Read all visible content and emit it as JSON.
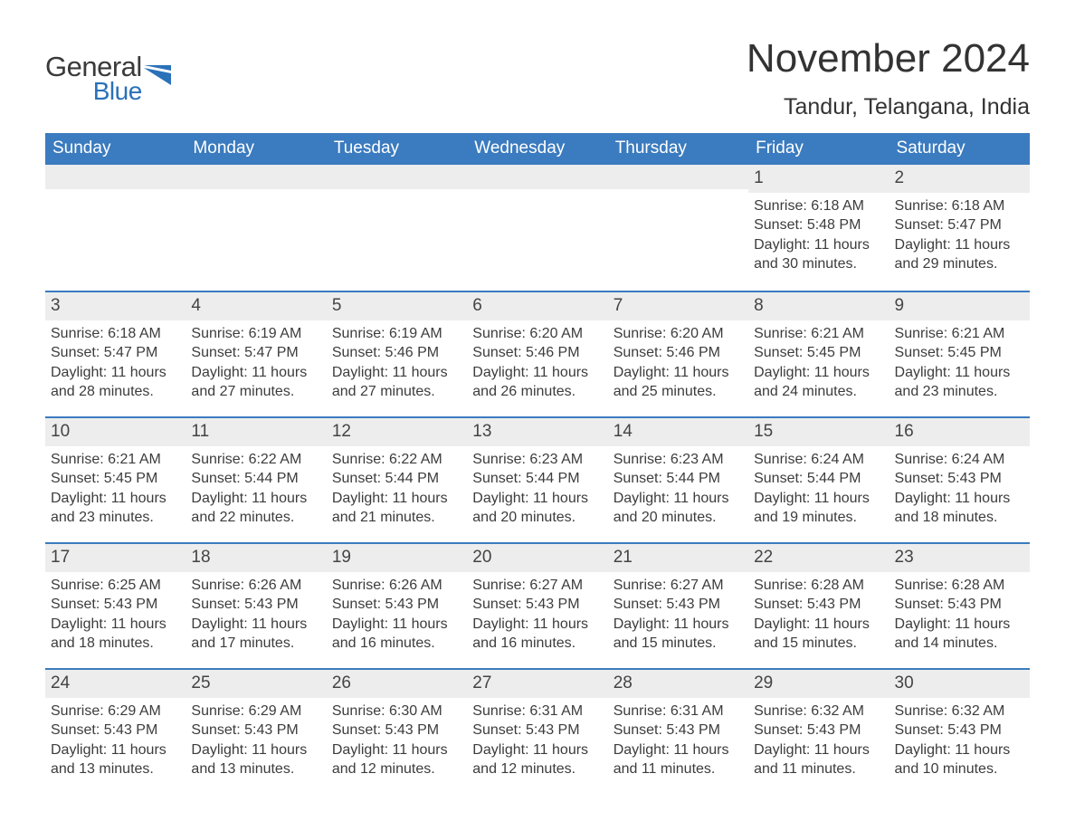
{
  "logo": {
    "general": "General",
    "blue": "Blue"
  },
  "title": "November 2024",
  "location": "Tandur, Telangana, India",
  "colors": {
    "header_bg": "#3b7bbf",
    "header_text": "#ffffff",
    "daybar_bg": "#ededed",
    "row_border": "#3b7bbf",
    "text": "#3c3c3c",
    "logo_blue": "#2a71b8"
  },
  "font": {
    "family": "Arial",
    "body_size_pt": 12,
    "title_size_pt": 33
  },
  "layout": {
    "columns": 7,
    "rows": 5,
    "first_day_column_index": 5
  },
  "weekdays": [
    "Sunday",
    "Monday",
    "Tuesday",
    "Wednesday",
    "Thursday",
    "Friday",
    "Saturday"
  ],
  "days": [
    {
      "n": 1,
      "sunrise": "6:18 AM",
      "sunset": "5:48 PM",
      "daylight": "11 hours and 30 minutes."
    },
    {
      "n": 2,
      "sunrise": "6:18 AM",
      "sunset": "5:47 PM",
      "daylight": "11 hours and 29 minutes."
    },
    {
      "n": 3,
      "sunrise": "6:18 AM",
      "sunset": "5:47 PM",
      "daylight": "11 hours and 28 minutes."
    },
    {
      "n": 4,
      "sunrise": "6:19 AM",
      "sunset": "5:47 PM",
      "daylight": "11 hours and 27 minutes."
    },
    {
      "n": 5,
      "sunrise": "6:19 AM",
      "sunset": "5:46 PM",
      "daylight": "11 hours and 27 minutes."
    },
    {
      "n": 6,
      "sunrise": "6:20 AM",
      "sunset": "5:46 PM",
      "daylight": "11 hours and 26 minutes."
    },
    {
      "n": 7,
      "sunrise": "6:20 AM",
      "sunset": "5:46 PM",
      "daylight": "11 hours and 25 minutes."
    },
    {
      "n": 8,
      "sunrise": "6:21 AM",
      "sunset": "5:45 PM",
      "daylight": "11 hours and 24 minutes."
    },
    {
      "n": 9,
      "sunrise": "6:21 AM",
      "sunset": "5:45 PM",
      "daylight": "11 hours and 23 minutes."
    },
    {
      "n": 10,
      "sunrise": "6:21 AM",
      "sunset": "5:45 PM",
      "daylight": "11 hours and 23 minutes."
    },
    {
      "n": 11,
      "sunrise": "6:22 AM",
      "sunset": "5:44 PM",
      "daylight": "11 hours and 22 minutes."
    },
    {
      "n": 12,
      "sunrise": "6:22 AM",
      "sunset": "5:44 PM",
      "daylight": "11 hours and 21 minutes."
    },
    {
      "n": 13,
      "sunrise": "6:23 AM",
      "sunset": "5:44 PM",
      "daylight": "11 hours and 20 minutes."
    },
    {
      "n": 14,
      "sunrise": "6:23 AM",
      "sunset": "5:44 PM",
      "daylight": "11 hours and 20 minutes."
    },
    {
      "n": 15,
      "sunrise": "6:24 AM",
      "sunset": "5:44 PM",
      "daylight": "11 hours and 19 minutes."
    },
    {
      "n": 16,
      "sunrise": "6:24 AM",
      "sunset": "5:43 PM",
      "daylight": "11 hours and 18 minutes."
    },
    {
      "n": 17,
      "sunrise": "6:25 AM",
      "sunset": "5:43 PM",
      "daylight": "11 hours and 18 minutes."
    },
    {
      "n": 18,
      "sunrise": "6:26 AM",
      "sunset": "5:43 PM",
      "daylight": "11 hours and 17 minutes."
    },
    {
      "n": 19,
      "sunrise": "6:26 AM",
      "sunset": "5:43 PM",
      "daylight": "11 hours and 16 minutes."
    },
    {
      "n": 20,
      "sunrise": "6:27 AM",
      "sunset": "5:43 PM",
      "daylight": "11 hours and 16 minutes."
    },
    {
      "n": 21,
      "sunrise": "6:27 AM",
      "sunset": "5:43 PM",
      "daylight": "11 hours and 15 minutes."
    },
    {
      "n": 22,
      "sunrise": "6:28 AM",
      "sunset": "5:43 PM",
      "daylight": "11 hours and 15 minutes."
    },
    {
      "n": 23,
      "sunrise": "6:28 AM",
      "sunset": "5:43 PM",
      "daylight": "11 hours and 14 minutes."
    },
    {
      "n": 24,
      "sunrise": "6:29 AM",
      "sunset": "5:43 PM",
      "daylight": "11 hours and 13 minutes."
    },
    {
      "n": 25,
      "sunrise": "6:29 AM",
      "sunset": "5:43 PM",
      "daylight": "11 hours and 13 minutes."
    },
    {
      "n": 26,
      "sunrise": "6:30 AM",
      "sunset": "5:43 PM",
      "daylight": "11 hours and 12 minutes."
    },
    {
      "n": 27,
      "sunrise": "6:31 AM",
      "sunset": "5:43 PM",
      "daylight": "11 hours and 12 minutes."
    },
    {
      "n": 28,
      "sunrise": "6:31 AM",
      "sunset": "5:43 PM",
      "daylight": "11 hours and 11 minutes."
    },
    {
      "n": 29,
      "sunrise": "6:32 AM",
      "sunset": "5:43 PM",
      "daylight": "11 hours and 11 minutes."
    },
    {
      "n": 30,
      "sunrise": "6:32 AM",
      "sunset": "5:43 PM",
      "daylight": "11 hours and 10 minutes."
    }
  ],
  "labels": {
    "sunrise": "Sunrise: ",
    "sunset": "Sunset: ",
    "daylight": "Daylight: "
  }
}
